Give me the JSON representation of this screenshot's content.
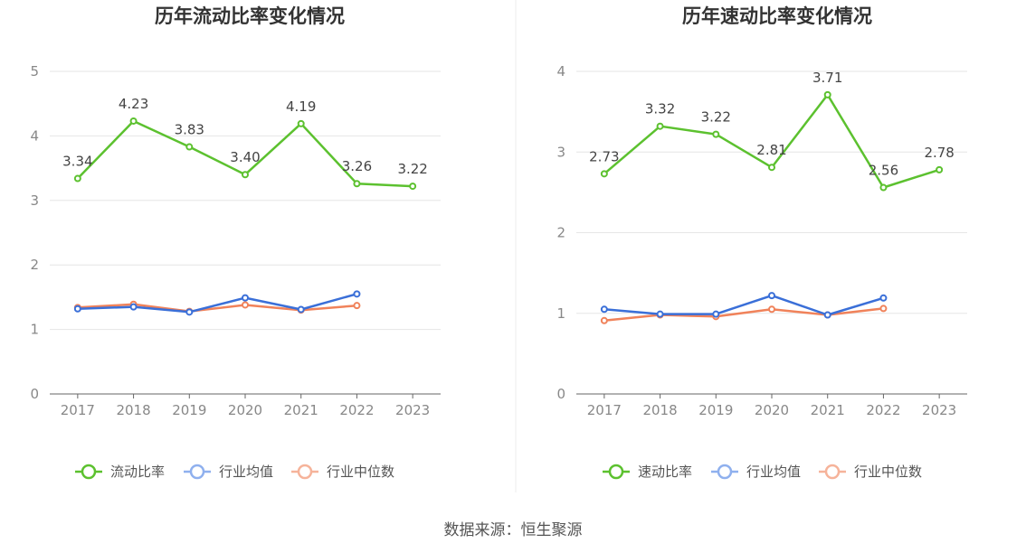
{
  "chart_data": [
    {
      "type": "line",
      "title": "历年流动比率变化情况",
      "categories": [
        "2017",
        "2018",
        "2019",
        "2020",
        "2021",
        "2022",
        "2023"
      ],
      "ylim": [
        0,
        5
      ],
      "yticks": [
        "0",
        "1",
        "2",
        "3",
        "4",
        "5"
      ],
      "grid": true,
      "legend_position": "bottom",
      "series": [
        {
          "name": "流动比率",
          "color": "#5cc12f",
          "values": [
            3.34,
            4.23,
            3.83,
            3.4,
            4.19,
            3.26,
            3.22
          ],
          "labels": [
            "3.34",
            "4.23",
            "3.83",
            "3.40",
            "4.19",
            "3.26",
            "3.22"
          ]
        },
        {
          "name": "行业均值",
          "color": "#3a6fd8",
          "legend_color": "#8fb0ee",
          "values": [
            1.32,
            1.35,
            1.27,
            1.49,
            1.31,
            1.55,
            null
          ]
        },
        {
          "name": "行业中位数",
          "color": "#f0825a",
          "legend_color": "#f6b39a",
          "values": [
            1.34,
            1.39,
            1.28,
            1.38,
            1.3,
            1.37,
            null
          ]
        }
      ]
    },
    {
      "type": "line",
      "title": "历年速动比率变化情况",
      "categories": [
        "2017",
        "2018",
        "2019",
        "2020",
        "2021",
        "2022",
        "2023"
      ],
      "ylim": [
        0,
        4
      ],
      "yticks": [
        "0",
        "1",
        "2",
        "3",
        "4"
      ],
      "grid": true,
      "legend_position": "bottom",
      "series": [
        {
          "name": "速动比率",
          "color": "#5cc12f",
          "values": [
            2.73,
            3.32,
            3.22,
            2.81,
            3.71,
            2.56,
            2.78
          ],
          "labels": [
            "2.73",
            "3.32",
            "3.22",
            "2.81",
            "3.71",
            "2.56",
            "2.78"
          ]
        },
        {
          "name": "行业均值",
          "color": "#3a6fd8",
          "legend_color": "#8fb0ee",
          "values": [
            1.05,
            0.99,
            0.99,
            1.22,
            0.98,
            1.19,
            null
          ]
        },
        {
          "name": "行业中位数",
          "color": "#f0825a",
          "legend_color": "#f6b39a",
          "values": [
            0.91,
            0.98,
            0.96,
            1.05,
            0.98,
            1.06,
            null
          ]
        }
      ]
    }
  ],
  "source": "数据来源：恒生聚源"
}
